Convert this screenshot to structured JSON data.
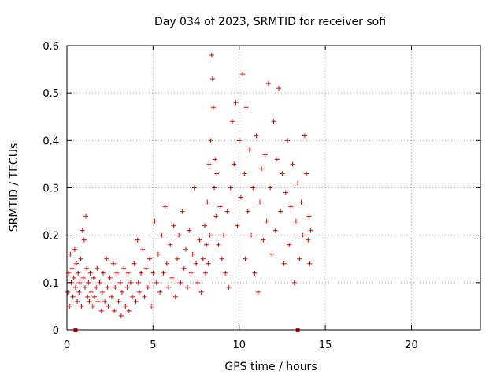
{
  "chart_data": {
    "type": "scatter",
    "title": "Day 034 of 2023, SRMTID for receiver sofi",
    "xlabel": "GPS time / hours",
    "ylabel": "SRMTID / TECUs",
    "xlim": [
      0,
      24
    ],
    "ylim": [
      0,
      0.6
    ],
    "xticks": [
      0,
      5,
      10,
      15,
      20
    ],
    "yticks": [
      0,
      0.1,
      0.2,
      0.3,
      0.4,
      0.5,
      0.6
    ],
    "xtick_labels": [
      "0",
      "5",
      "10",
      "15",
      "20"
    ],
    "ytick_labels": [
      "0",
      "0.1",
      "0.2",
      "0.3",
      "0.4",
      "0.5",
      "0.6"
    ],
    "grid": true,
    "marker": "plus",
    "color": "#e00000",
    "x_axis_markers": [
      0.5,
      13.4
    ],
    "series": [
      {
        "name": "sofi",
        "points": [
          [
            0.05,
            0.08
          ],
          [
            0.1,
            0.12
          ],
          [
            0.15,
            0.05
          ],
          [
            0.2,
            0.16
          ],
          [
            0.25,
            0.1
          ],
          [
            0.3,
            0.13
          ],
          [
            0.35,
            0.07
          ],
          [
            0.4,
            0.11
          ],
          [
            0.45,
            0.17
          ],
          [
            0.5,
            0.09
          ],
          [
            0.55,
            0.14
          ],
          [
            0.6,
            0.06
          ],
          [
            0.65,
            0.12
          ],
          [
            0.7,
            0.08
          ],
          [
            0.75,
            0.1
          ],
          [
            0.8,
            0.15
          ],
          [
            0.85,
            0.05
          ],
          [
            0.9,
            0.21
          ],
          [
            0.95,
            0.11
          ],
          [
            1.0,
            0.19
          ],
          [
            1.05,
            0.09
          ],
          [
            1.1,
            0.24
          ],
          [
            1.15,
            0.13
          ],
          [
            1.2,
            0.07
          ],
          [
            1.25,
            0.1
          ],
          [
            1.3,
            0.06
          ],
          [
            1.35,
            0.12
          ],
          [
            1.4,
            0.08
          ],
          [
            1.5,
            0.05
          ],
          [
            1.55,
            0.11
          ],
          [
            1.6,
            0.07
          ],
          [
            1.7,
            0.09
          ],
          [
            1.75,
            0.13
          ],
          [
            1.8,
            0.06
          ],
          [
            1.9,
            0.1
          ],
          [
            2.0,
            0.04
          ],
          [
            2.05,
            0.08
          ],
          [
            2.1,
            0.12
          ],
          [
            2.2,
            0.06
          ],
          [
            2.3,
            0.15
          ],
          [
            2.35,
            0.09
          ],
          [
            2.4,
            0.05
          ],
          [
            2.5,
            0.11
          ],
          [
            2.6,
            0.07
          ],
          [
            2.7,
            0.14
          ],
          [
            2.75,
            0.04
          ],
          [
            2.8,
            0.09
          ],
          [
            2.9,
            0.12
          ],
          [
            3.0,
            0.06
          ],
          [
            3.1,
            0.1
          ],
          [
            3.15,
            0.03
          ],
          [
            3.2,
            0.08
          ],
          [
            3.3,
            0.13
          ],
          [
            3.4,
            0.05
          ],
          [
            3.5,
            0.09
          ],
          [
            3.55,
            0.12
          ],
          [
            3.6,
            0.04
          ],
          [
            3.7,
            0.1
          ],
          [
            3.8,
            0.07
          ],
          [
            3.9,
            0.14
          ],
          [
            4.0,
            0.06
          ],
          [
            4.1,
            0.19
          ],
          [
            4.15,
            0.1
          ],
          [
            4.2,
            0.08
          ],
          [
            4.3,
            0.12
          ],
          [
            4.4,
            0.17
          ],
          [
            4.5,
            0.07
          ],
          [
            4.6,
            0.13
          ],
          [
            4.7,
            0.09
          ],
          [
            4.8,
            0.15
          ],
          [
            4.9,
            0.05
          ],
          [
            5.0,
            0.12
          ],
          [
            5.1,
            0.23
          ],
          [
            5.2,
            0.1
          ],
          [
            5.3,
            0.16
          ],
          [
            5.4,
            0.08
          ],
          [
            5.5,
            0.2
          ],
          [
            5.6,
            0.12
          ],
          [
            5.7,
            0.26
          ],
          [
            5.8,
            0.14
          ],
          [
            5.9,
            0.09
          ],
          [
            6.0,
            0.18
          ],
          [
            6.1,
            0.11
          ],
          [
            6.2,
            0.22
          ],
          [
            6.3,
            0.07
          ],
          [
            6.4,
            0.15
          ],
          [
            6.5,
            0.2
          ],
          [
            6.6,
            0.1
          ],
          [
            6.7,
            0.25
          ],
          [
            6.8,
            0.13
          ],
          [
            6.9,
            0.17
          ],
          [
            7.0,
            0.09
          ],
          [
            7.1,
            0.21
          ],
          [
            7.2,
            0.12
          ],
          [
            7.3,
            0.16
          ],
          [
            7.4,
            0.3
          ],
          [
            7.5,
            0.14
          ],
          [
            7.6,
            0.1
          ],
          [
            7.7,
            0.19
          ],
          [
            7.8,
            0.08
          ],
          [
            7.9,
            0.15
          ],
          [
            8.0,
            0.22
          ],
          [
            8.05,
            0.12
          ],
          [
            8.1,
            0.18
          ],
          [
            8.15,
            0.27
          ],
          [
            8.2,
            0.14
          ],
          [
            8.25,
            0.35
          ],
          [
            8.3,
            0.2
          ],
          [
            8.35,
            0.4
          ],
          [
            8.4,
            0.58
          ],
          [
            8.45,
            0.53
          ],
          [
            8.5,
            0.47
          ],
          [
            8.55,
            0.3
          ],
          [
            8.6,
            0.36
          ],
          [
            8.65,
            0.24
          ],
          [
            8.7,
            0.33
          ],
          [
            8.8,
            0.18
          ],
          [
            8.9,
            0.26
          ],
          [
            9.0,
            0.15
          ],
          [
            9.1,
            0.2
          ],
          [
            9.2,
            0.12
          ],
          [
            9.3,
            0.25
          ],
          [
            9.4,
            0.09
          ],
          [
            9.5,
            0.3
          ],
          [
            9.6,
            0.44
          ],
          [
            9.7,
            0.35
          ],
          [
            9.8,
            0.48
          ],
          [
            9.9,
            0.22
          ],
          [
            10.0,
            0.4
          ],
          [
            10.1,
            0.28
          ],
          [
            10.2,
            0.54
          ],
          [
            10.3,
            0.33
          ],
          [
            10.35,
            0.15
          ],
          [
            10.4,
            0.47
          ],
          [
            10.5,
            0.25
          ],
          [
            10.6,
            0.38
          ],
          [
            10.7,
            0.2
          ],
          [
            10.8,
            0.3
          ],
          [
            10.9,
            0.12
          ],
          [
            11.0,
            0.41
          ],
          [
            11.1,
            0.08
          ],
          [
            11.2,
            0.27
          ],
          [
            11.3,
            0.34
          ],
          [
            11.4,
            0.19
          ],
          [
            11.5,
            0.37
          ],
          [
            11.6,
            0.23
          ],
          [
            11.7,
            0.52
          ],
          [
            11.8,
            0.3
          ],
          [
            11.9,
            0.16
          ],
          [
            12.0,
            0.44
          ],
          [
            12.1,
            0.21
          ],
          [
            12.2,
            0.36
          ],
          [
            12.3,
            0.51
          ],
          [
            12.4,
            0.25
          ],
          [
            12.5,
            0.33
          ],
          [
            12.6,
            0.14
          ],
          [
            12.7,
            0.29
          ],
          [
            12.8,
            0.4
          ],
          [
            12.9,
            0.18
          ],
          [
            13.0,
            0.26
          ],
          [
            13.1,
            0.35
          ],
          [
            13.2,
            0.1
          ],
          [
            13.3,
            0.23
          ],
          [
            13.4,
            0.31
          ],
          [
            13.5,
            0.15
          ],
          [
            13.6,
            0.27
          ],
          [
            13.7,
            0.2
          ],
          [
            13.8,
            0.41
          ],
          [
            13.9,
            0.33
          ],
          [
            14.0,
            0.19
          ],
          [
            14.05,
            0.24
          ],
          [
            14.1,
            0.14
          ],
          [
            14.15,
            0.21
          ]
        ]
      }
    ]
  }
}
